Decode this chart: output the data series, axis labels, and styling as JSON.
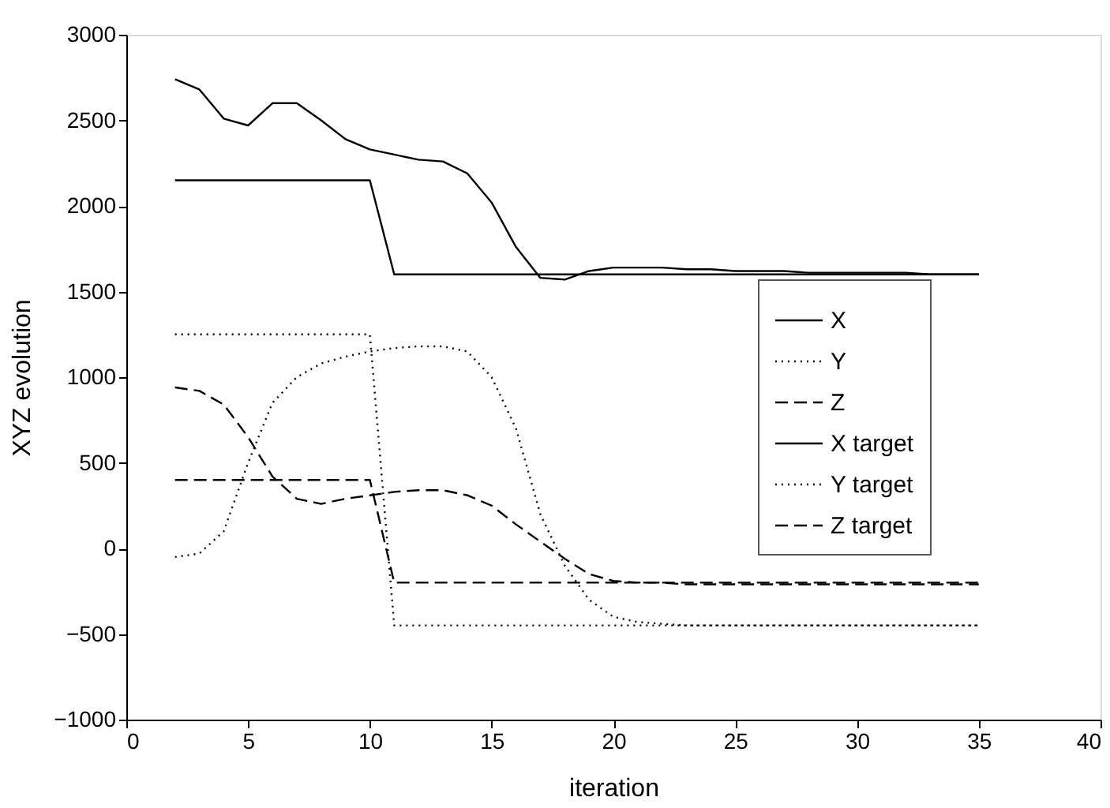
{
  "chart_data": {
    "type": "line",
    "xlabel": "iteration",
    "ylabel": "XYZ evolution",
    "xlim": [
      0,
      40
    ],
    "xticks": [
      0,
      5,
      10,
      15,
      20,
      25,
      30,
      35,
      40
    ],
    "ylim": [
      -1000,
      3000
    ],
    "yticks": [
      -1000,
      -500,
      0,
      500,
      1000,
      1500,
      2000,
      2500,
      3000
    ],
    "grid": false,
    "legend": "right",
    "marker": "none",
    "x": [
      2,
      3,
      4,
      5,
      6,
      7,
      8,
      9,
      10,
      11,
      12,
      13,
      14,
      15,
      16,
      17,
      18,
      19,
      20,
      21,
      22,
      23,
      24,
      25,
      26,
      27,
      28,
      29,
      30,
      31,
      32,
      33,
      34,
      35
    ],
    "series": [
      {
        "name": "X",
        "color": "#000000",
        "line_style": "solid",
        "values": [
          2740,
          2680,
          2510,
          2470,
          2600,
          2600,
          2500,
          2390,
          2330,
          2300,
          2270,
          2260,
          2190,
          2020,
          1760,
          1580,
          1570,
          1620,
          1640,
          1640,
          1640,
          1630,
          1630,
          1620,
          1620,
          1620,
          1610,
          1610,
          1610,
          1610,
          1610,
          1600,
          1600,
          1600
        ]
      },
      {
        "name": "Y",
        "color": "#000000",
        "line_style": "dotted",
        "values": [
          -50,
          -30,
          100,
          500,
          850,
          1000,
          1080,
          1120,
          1150,
          1170,
          1180,
          1180,
          1150,
          1000,
          700,
          200,
          -100,
          -300,
          -400,
          -430,
          -440,
          -450,
          -450,
          -450,
          -450,
          -450,
          -450,
          -450,
          -450,
          -450,
          -450,
          -450,
          -450,
          -450
        ]
      },
      {
        "name": "Z",
        "color": "#000000",
        "line_style": "dashed",
        "values": [
          940,
          920,
          840,
          650,
          420,
          290,
          260,
          290,
          310,
          330,
          340,
          340,
          310,
          250,
          140,
          40,
          -60,
          -150,
          -190,
          -200,
          -200,
          -210,
          -210,
          -210,
          -210,
          -210,
          -210,
          -210,
          -210,
          -210,
          -210,
          -210,
          -210,
          -210
        ]
      },
      {
        "name": "X target",
        "color": "#000000",
        "line_style": "solid",
        "values": [
          2150,
          2150,
          2150,
          2150,
          2150,
          2150,
          2150,
          2150,
          2150,
          1600,
          1600,
          1600,
          1600,
          1600,
          1600,
          1600,
          1600,
          1600,
          1600,
          1600,
          1600,
          1600,
          1600,
          1600,
          1600,
          1600,
          1600,
          1600,
          1600,
          1600,
          1600,
          1600,
          1600,
          1600
        ]
      },
      {
        "name": "Y target",
        "color": "#000000",
        "line_style": "dotted",
        "values": [
          1250,
          1250,
          1250,
          1250,
          1250,
          1250,
          1250,
          1250,
          1250,
          -450,
          -450,
          -450,
          -450,
          -450,
          -450,
          -450,
          -450,
          -450,
          -450,
          -450,
          -450,
          -450,
          -450,
          -450,
          -450,
          -450,
          -450,
          -450,
          -450,
          -450,
          -450,
          -450,
          -450,
          -450
        ]
      },
      {
        "name": "Z target",
        "color": "#000000",
        "line_style": "dashed",
        "values": [
          400,
          400,
          400,
          400,
          400,
          400,
          400,
          400,
          400,
          -200,
          -200,
          -200,
          -200,
          -200,
          -200,
          -200,
          -200,
          -200,
          -200,
          -200,
          -200,
          -200,
          -200,
          -200,
          -200,
          -200,
          -200,
          -200,
          -200,
          -200,
          -200,
          -200,
          -200,
          -200
        ]
      }
    ]
  }
}
